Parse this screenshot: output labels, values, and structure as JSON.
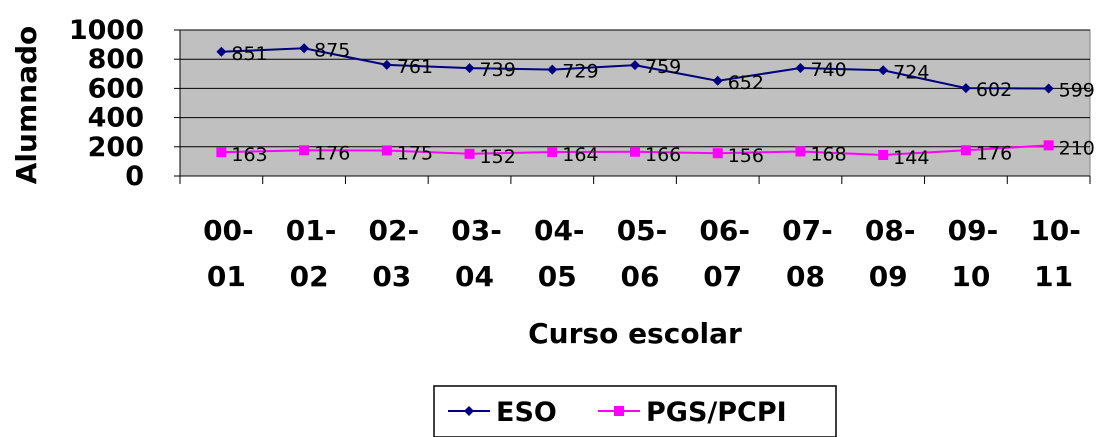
{
  "chart_data": {
    "type": "line",
    "xlabel": "Curso escolar",
    "ylabel": "Alumnado",
    "ylim": [
      0,
      1000
    ],
    "yticks": [
      "0",
      "200",
      "400",
      "600",
      "800",
      "1000"
    ],
    "categories": [
      [
        "00-",
        "01"
      ],
      [
        "01-",
        "02"
      ],
      [
        "02-",
        "03"
      ],
      [
        "03-",
        "04"
      ],
      [
        "04-",
        "05"
      ],
      [
        "05-",
        "06"
      ],
      [
        "06-",
        "07"
      ],
      [
        "07-",
        "08"
      ],
      [
        "08-",
        "09"
      ],
      [
        "09-",
        "10"
      ],
      [
        "10-",
        "11"
      ]
    ],
    "series": [
      {
        "name": "ESO",
        "color": "#000080",
        "marker": "diamond",
        "values": [
          851,
          875,
          761,
          739,
          729,
          759,
          652,
          740,
          724,
          602,
          599
        ]
      },
      {
        "name": "PGS/PCPI",
        "color": "#FF00FF",
        "marker": "square",
        "values": [
          163,
          176,
          175,
          152,
          164,
          166,
          156,
          168,
          144,
          176,
          210
        ]
      }
    ],
    "grid": "horizontal",
    "legend": "bottom-center"
  }
}
